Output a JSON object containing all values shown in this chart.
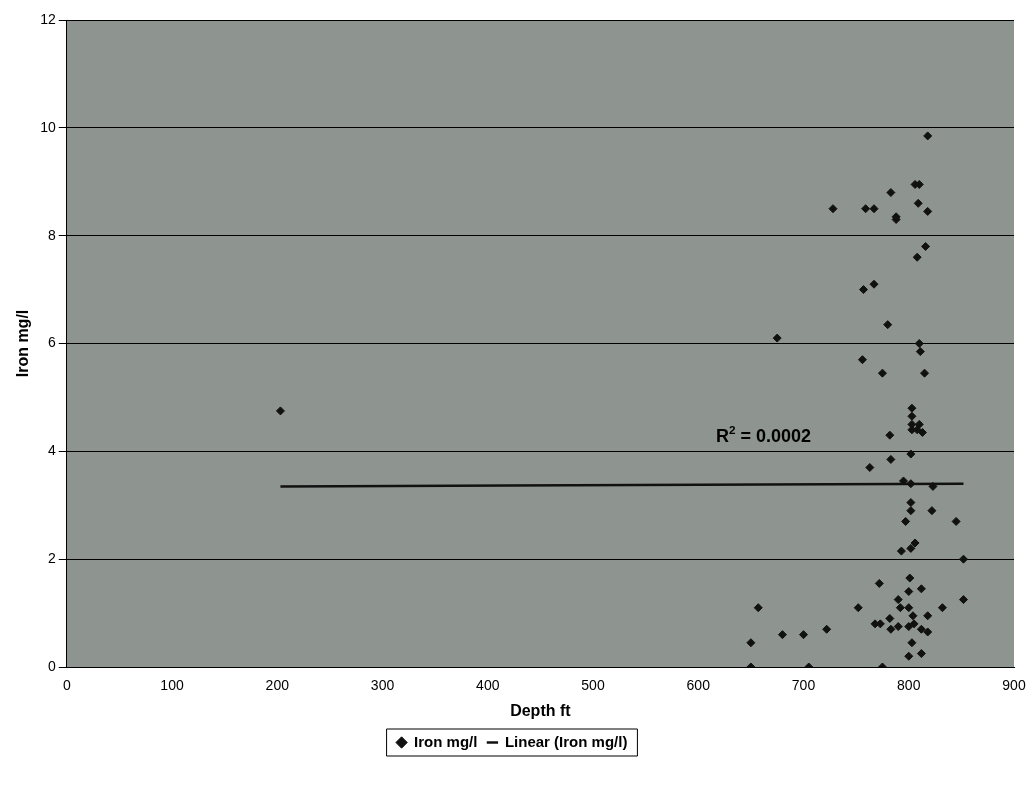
{
  "chart_data": {
    "type": "scatter",
    "xlabel": "Depth ft",
    "ylabel": "Iron mg/l",
    "xlim": [
      0,
      900
    ],
    "xticks": [
      0,
      100,
      200,
      300,
      400,
      500,
      600,
      700,
      800,
      900
    ],
    "ylim": [
      0,
      12
    ],
    "yticks": [
      0,
      2,
      4,
      6,
      8,
      10,
      12
    ],
    "grid": "y",
    "legend": "bottom",
    "series": [
      {
        "name": "Iron mg/l",
        "color": "#111111",
        "marker": "diamond",
        "x": [
          203,
          650,
          650,
          657,
          675,
          680,
          700,
          705,
          722,
          728,
          752,
          756,
          757,
          759,
          763,
          767,
          767,
          768,
          772,
          773,
          775,
          775,
          780,
          782,
          782,
          783,
          783,
          783,
          788,
          788,
          790,
          790,
          792,
          793,
          795,
          797,
          800,
          800,
          800,
          800,
          801,
          802,
          802,
          802,
          802,
          802,
          803,
          803,
          803,
          803,
          803,
          804,
          805,
          806,
          806,
          808,
          808,
          809,
          810,
          810,
          810,
          811,
          812,
          812,
          812,
          813,
          815,
          816,
          818,
          818,
          818,
          818,
          822,
          823,
          832,
          845,
          852,
          852
        ],
        "values": [
          4.75,
          0.0,
          0.45,
          1.1,
          6.1,
          0.6,
          0.6,
          0.0,
          0.7,
          8.5,
          1.1,
          5.7,
          7.0,
          8.5,
          3.7,
          7.1,
          8.5,
          0.8,
          1.55,
          0.8,
          5.45,
          0.0,
          6.35,
          4.3,
          0.9,
          3.85,
          8.8,
          0.7,
          8.3,
          8.35,
          1.25,
          0.75,
          1.1,
          2.15,
          3.45,
          2.7,
          0.75,
          0.2,
          1.1,
          1.4,
          1.65,
          2.2,
          2.9,
          3.05,
          3.4,
          3.95,
          4.4,
          4.5,
          4.65,
          4.8,
          0.45,
          0.95,
          0.8,
          2.3,
          8.95,
          4.4,
          7.6,
          8.6,
          8.95,
          4.5,
          6.0,
          5.85,
          0.7,
          1.45,
          0.25,
          4.35,
          5.45,
          7.8,
          8.45,
          9.85,
          0.65,
          0.95,
          2.9,
          3.35,
          1.1,
          2.7,
          1.25,
          2.0
        ]
      },
      {
        "name": "Linear (Iron mg/l)",
        "color": "#111111",
        "type": "line",
        "marker": "none",
        "x": [
          203,
          852
        ],
        "values": [
          3.35,
          3.4
        ]
      }
    ],
    "annotations": [
      "R$^{2}$ = 0.0002"
    ]
  }
}
